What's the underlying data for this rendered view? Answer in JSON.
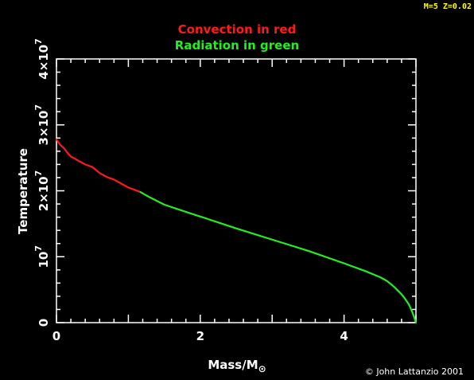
{
  "chart_data": {
    "type": "line",
    "corner_label": "M=5 Z=0.02",
    "title_lines": [
      {
        "text": "Convection in red",
        "color": "#ff1a1a"
      },
      {
        "text": "Radiation in green",
        "color": "#22ee22"
      }
    ],
    "xlabel": "Mass/M",
    "xlabel_sub": "⊙",
    "ylabel": "Temperature",
    "credit": "© John Lattanzio 2001",
    "xlim": [
      0,
      5
    ],
    "ylim": [
      0,
      40000000
    ],
    "x_ticks": [
      {
        "value": 0,
        "label": "0"
      },
      {
        "value": 2,
        "label": "2"
      },
      {
        "value": 4,
        "label": "4"
      }
    ],
    "y_ticks": [
      {
        "value": 0,
        "base": "0",
        "exp": ""
      },
      {
        "value": 10000000,
        "base": "10",
        "exp": "7"
      },
      {
        "value": 20000000,
        "base": "2×10",
        "exp": "7"
      },
      {
        "value": 30000000,
        "base": "3×10",
        "exp": "7"
      },
      {
        "value": 40000000,
        "base": "4×10",
        "exp": "7"
      }
    ],
    "series": [
      {
        "name": "Convection",
        "color": "#ff1a1a",
        "x": [
          0.0,
          0.05,
          0.1,
          0.15,
          0.2,
          0.3,
          0.4,
          0.5,
          0.6,
          0.7,
          0.8,
          0.9,
          1.0,
          1.1,
          1.17
        ],
        "y": [
          27800000,
          27000000,
          26500000,
          25800000,
          25200000,
          24600000,
          24000000,
          23600000,
          22700000,
          22100000,
          21700000,
          21100000,
          20500000,
          20100000,
          19800000
        ]
      },
      {
        "name": "Radiation",
        "color": "#22ee22",
        "x": [
          1.17,
          1.3,
          1.5,
          1.8,
          2.0,
          2.5,
          3.0,
          3.5,
          4.0,
          4.3,
          4.5,
          4.6,
          4.7,
          4.8,
          4.85,
          4.9,
          4.93,
          4.96,
          4.98,
          5.0
        ],
        "y": [
          19800000,
          19000000,
          17900000,
          16800000,
          16100000,
          14300000,
          12600000,
          10900000,
          9000000,
          7800000,
          6900000,
          6300000,
          5400000,
          4300000,
          3600000,
          2800000,
          2100000,
          1300000,
          700000,
          0
        ]
      }
    ]
  }
}
